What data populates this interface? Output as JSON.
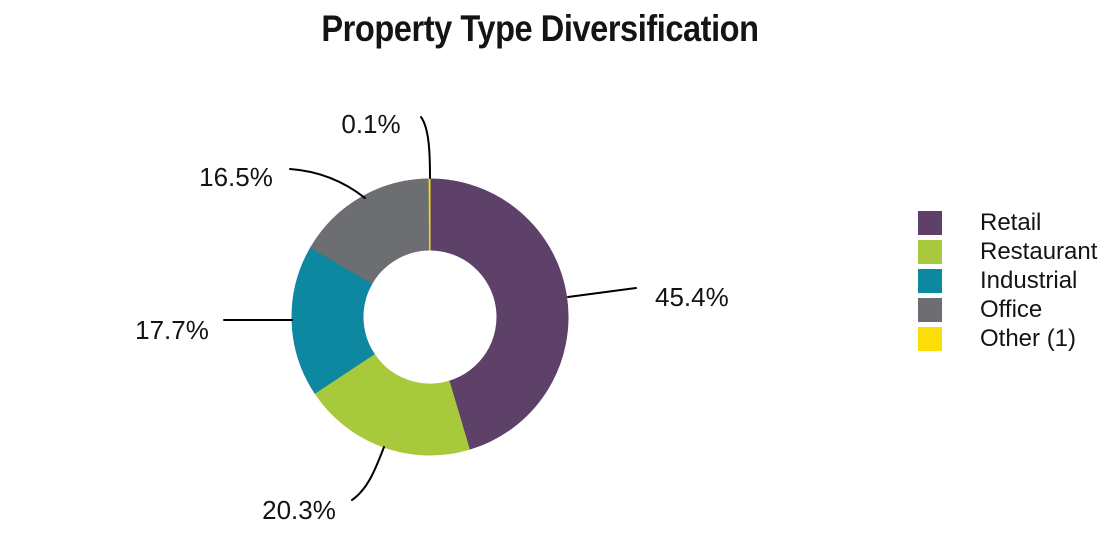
{
  "chart_data": {
    "type": "pie",
    "subtype": "donut",
    "title": "Property Type Diversification",
    "categories": [
      "Retail",
      "Restaurant",
      "Industrial",
      "Office",
      "Other (1)"
    ],
    "values": [
      45.4,
      20.3,
      17.7,
      16.5,
      0.1
    ],
    "labels": [
      "45.4%",
      "20.3%",
      "17.7%",
      "16.5%",
      "0.1%"
    ],
    "colors": [
      "#5e4169",
      "#a8c93c",
      "#0e87a1",
      "#6d6e71",
      "#fcdd0a"
    ],
    "legend_position": "right",
    "start_angle_deg": 0,
    "direction": "clockwise",
    "inner_radius_ratio": 0.485,
    "leader_line_color": "#000000"
  }
}
